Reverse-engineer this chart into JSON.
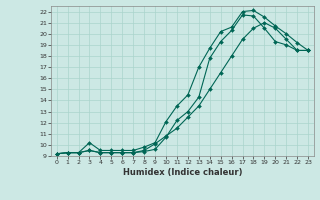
{
  "xlabel": "Humidex (Indice chaleur)",
  "background_color": "#cce8e4",
  "grid_color": "#aad4cc",
  "line_color": "#006655",
  "xlim": [
    -0.5,
    23.5
  ],
  "ylim": [
    9,
    22.5
  ],
  "xticks": [
    0,
    1,
    2,
    3,
    4,
    5,
    6,
    7,
    8,
    9,
    10,
    11,
    12,
    13,
    14,
    15,
    16,
    17,
    18,
    19,
    20,
    21,
    22,
    23
  ],
  "yticks": [
    9,
    10,
    11,
    12,
    13,
    14,
    15,
    16,
    17,
    18,
    19,
    20,
    21,
    22
  ],
  "line1_x": [
    0,
    1,
    2,
    3,
    4,
    5,
    6,
    7,
    8,
    9,
    10,
    11,
    12,
    13,
    14,
    15,
    16,
    17,
    18,
    19,
    20,
    21,
    22,
    23
  ],
  "line1_y": [
    9.2,
    9.3,
    9.3,
    9.5,
    9.3,
    9.3,
    9.3,
    9.3,
    9.4,
    9.6,
    10.7,
    12.2,
    13.0,
    14.3,
    17.8,
    19.3,
    20.3,
    21.7,
    21.6,
    20.5,
    19.3,
    19.0,
    18.5,
    18.5
  ],
  "line2_x": [
    0,
    1,
    2,
    3,
    4,
    5,
    6,
    7,
    8,
    9,
    10,
    11,
    12,
    13,
    14,
    15,
    16,
    17,
    18,
    19,
    20,
    21,
    22,
    23
  ],
  "line2_y": [
    9.2,
    9.3,
    9.3,
    10.2,
    9.5,
    9.5,
    9.5,
    9.5,
    9.8,
    10.2,
    12.1,
    13.5,
    14.5,
    17.0,
    18.7,
    20.2,
    20.6,
    22.0,
    22.1,
    21.5,
    20.7,
    20.0,
    19.2,
    18.5
  ],
  "line3_x": [
    0,
    1,
    2,
    3,
    4,
    5,
    6,
    7,
    8,
    9,
    10,
    11,
    12,
    13,
    14,
    15,
    16,
    17,
    18,
    19,
    20,
    21,
    22,
    23
  ],
  "line3_y": [
    9.2,
    9.3,
    9.3,
    9.5,
    9.3,
    9.3,
    9.3,
    9.3,
    9.5,
    10.1,
    10.8,
    11.5,
    12.5,
    13.5,
    15.0,
    16.5,
    18.0,
    19.5,
    20.5,
    21.0,
    20.5,
    19.5,
    18.5,
    18.5
  ]
}
